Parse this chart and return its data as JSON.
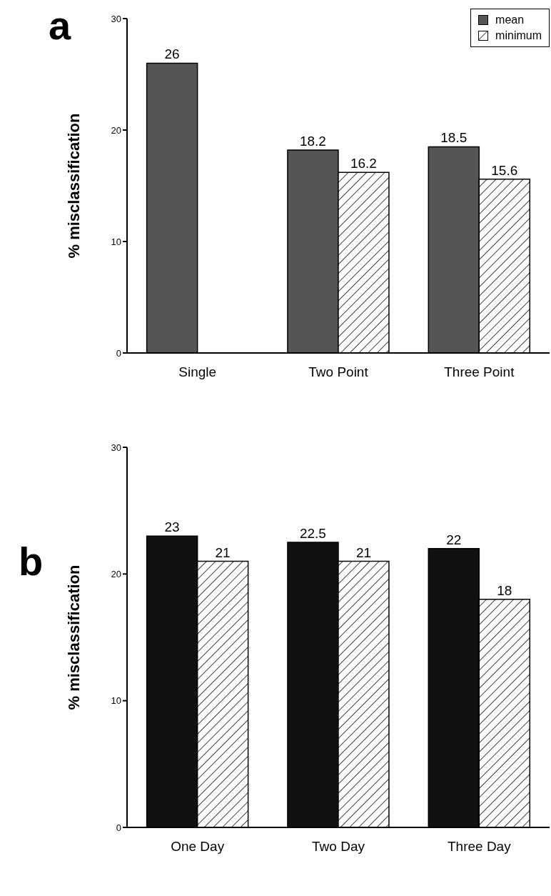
{
  "chart_data": [
    {
      "type": "bar",
      "title": "a",
      "ylabel": "% misclassification",
      "categories": [
        "Single",
        "Two Point",
        "Three Point"
      ],
      "series": [
        {
          "name": "mean",
          "color": "#555555",
          "values": [
            26,
            18.2,
            18.5
          ]
        },
        {
          "name": "minimum",
          "color": "#000000",
          "values": [
            null,
            16.2,
            15.6
          ]
        }
      ],
      "ylim": [
        0,
        30
      ],
      "yticks": [
        0,
        10,
        20,
        30
      ],
      "grid": false,
      "legend": "top right",
      "data_labels": true
    },
    {
      "type": "bar",
      "title": "b",
      "ylabel": "% misclassification",
      "categories": [
        "One Day",
        "Two Day",
        "Three Day"
      ],
      "series": [
        {
          "color": "#111111",
          "values": [
            23,
            22.5,
            22
          ]
        },
        {
          "color": "#000000",
          "values": [
            21,
            21,
            18
          ]
        }
      ],
      "ylim": [
        0,
        30
      ],
      "yticks": [
        0,
        10,
        20,
        30
      ],
      "grid": false,
      "data_labels": true
    }
  ]
}
